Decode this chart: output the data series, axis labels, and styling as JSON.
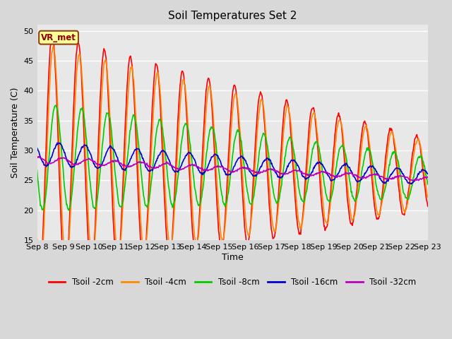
{
  "title": "Soil Temperatures Set 2",
  "xlabel": "Time",
  "ylabel": "Soil Temperature (C)",
  "ylim": [
    15,
    51
  ],
  "yticks": [
    15,
    20,
    25,
    30,
    35,
    40,
    45,
    50
  ],
  "annotation_text": "VR_met",
  "bg_color": "#d8d8d8",
  "plot_bg_color": "#e8e8e8",
  "line_colors": {
    "2cm": "#ff0000",
    "4cm": "#ff8800",
    "8cm": "#00cc00",
    "16cm": "#0000cc",
    "32cm": "#bb00bb"
  },
  "line_labels": {
    "2cm": "Tsoil -2cm",
    "4cm": "Tsoil -4cm",
    "8cm": "Tsoil -8cm",
    "16cm": "Tsoil -16cm",
    "32cm": "Tsoil -32cm"
  },
  "xtick_labels": [
    "Sep 8",
    "Sep 9",
    "Sep 10",
    "Sep 11",
    "Sep 12",
    "Sep 13",
    "Sep 14",
    "Sep 15",
    "Sep 16",
    "Sep 17",
    "Sep 18",
    "Sep 19",
    "Sep 20",
    "Sep 21",
    "Sep 22",
    "Sep 23"
  ],
  "linewidth": 1.2
}
